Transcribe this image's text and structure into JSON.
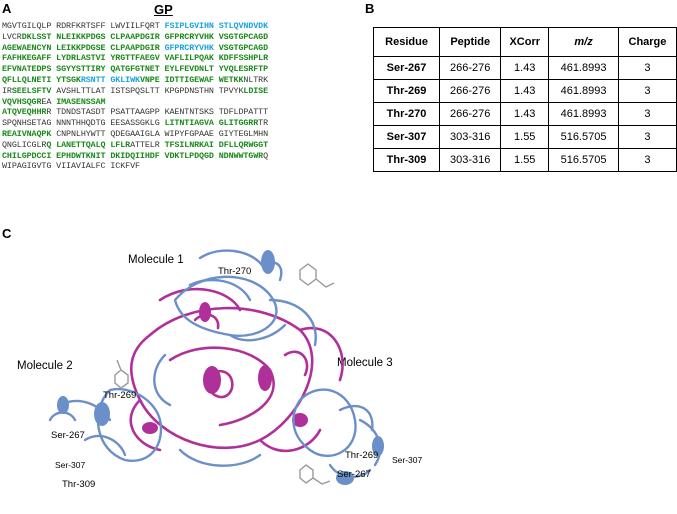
{
  "panels": {
    "a": "A",
    "b": "B",
    "c": "C"
  },
  "sequence": {
    "title": "GP",
    "lines": [
      [
        {
          "t": "MGVTGILQLP RDRFKRTSFF LWVIILFQRT ",
          "c": ""
        },
        {
          "t": "FSIPLGVIHN STLQVNDVDK",
          "c": "b"
        }
      ],
      [
        {
          "t": "LVCR",
          "c": ""
        },
        {
          "t": "DKLSST NLEIKKPDGS CLPAAPDGIR GFPRCRYVHK VSGTGPCAGD",
          "c": "g"
        }
      ],
      [
        {
          "t": "AGEWAENCYN LEIKKPDGSE CLPAAPDGIR ",
          "c": "g"
        },
        {
          "t": "GFPRCRYVHK",
          "c": "b"
        },
        {
          "t": " VSGTGPCAGD",
          "c": "g"
        }
      ],
      [
        {
          "t": "FAFHKEGAFF LYDRLASTVI YRGTTFAEGV VAFLILPQAK KDFFSSHPLR",
          "c": "g"
        }
      ],
      [
        {
          "t": "EFVNATEDPS SGYYSTTIRY QATGFGTNET EYLFEVDNLT YVQLESRFTP",
          "c": "g"
        }
      ],
      [
        {
          "t": "QFLLQLNETI YTSGK",
          "c": "g"
        },
        {
          "t": "RSNTT GKLIWK",
          "c": "b"
        },
        {
          "t": "VNPE IDTTIGEWAF WETKK",
          "c": "g"
        },
        {
          "t": "NLTRK",
          "c": ""
        }
      ],
      [
        {
          "t": "IR",
          "c": ""
        },
        {
          "t": "SEELSFTV",
          "c": "g"
        },
        {
          "t": " AVSHLTTLAT ISTSPQSLTT KPGPDNSTHN TPVYK",
          "c": ""
        },
        {
          "t": "LDISE",
          "c": "g"
        }
      ],
      [
        {
          "t": "VQVHSQGR",
          "c": "g"
        },
        {
          "t": "EA ",
          "c": ""
        },
        {
          "t": "IMASENSSAM",
          "c": "g"
        }
      ],
      [
        {
          "t": "ATQVEQHHR",
          "c": "g"
        },
        {
          "t": "R TDNDSTASDT PSATTAAGPP KAENTNTSKS TDFLDPATTT",
          "c": ""
        }
      ],
      [
        {
          "t": "SPQNHSETAG NNNTHHQDTG EESASSGKLG ",
          "c": ""
        },
        {
          "t": "LITNTIAGVA GLITGGRR",
          "c": "g"
        },
        {
          "t": "TR",
          "c": ""
        }
      ],
      [
        {
          "t": "REAIVNAQPK",
          "c": "g"
        },
        {
          "t": " CNPNLHYWTT QDEGAAIGLA WIPYFGPAAE GIYTEGLMHN",
          "c": ""
        }
      ],
      [
        {
          "t": "QNGLICGLR",
          "c": ""
        },
        {
          "t": "Q LANETTQALQ LFLR",
          "c": "g"
        },
        {
          "t": "ATTELR ",
          "c": ""
        },
        {
          "t": "TFSILNRKAI DFLLQRWGGT",
          "c": "g"
        }
      ],
      [
        {
          "t": "CHILGPDCCI EPHDWTKNIT DKIDQIIHDF VDKTLPDQGD NDNWWTGWR",
          "c": "g"
        },
        {
          "t": "Q",
          "c": ""
        }
      ],
      [
        {
          "t": "WIPAGIGVTG VIIAVIALFC ICKFVF",
          "c": ""
        }
      ]
    ]
  },
  "table": {
    "headers": [
      "Residue",
      "Peptide",
      "XCorr",
      "m/z",
      "Charge"
    ],
    "rows": [
      [
        "Ser-267",
        "266-276",
        "1.43",
        "461.8993",
        "3"
      ],
      [
        "Thr-269",
        "266-276",
        "1.43",
        "461.8993",
        "3"
      ],
      [
        "Thr-270",
        "266-276",
        "1.43",
        "461.8993",
        "3"
      ],
      [
        "Ser-307",
        "303-316",
        "1.55",
        "516.5705",
        "3"
      ],
      [
        "Thr-309",
        "303-316",
        "1.55",
        "516.5705",
        "3"
      ]
    ]
  },
  "structure": {
    "molecules": [
      "Molecule 1",
      "Molecule 2",
      "Molecule 3"
    ],
    "sites": [
      "Thr-270",
      "Thr-269",
      "Ser-267",
      "Ser-307",
      "Thr-309",
      "Thr-269",
      "Ser-307",
      "Ser-267"
    ],
    "colors": {
      "gp1_blue": "#6b8fc9",
      "gp2_magenta": "#b0309a",
      "glycan_gray": "#9a9a9a"
    }
  }
}
